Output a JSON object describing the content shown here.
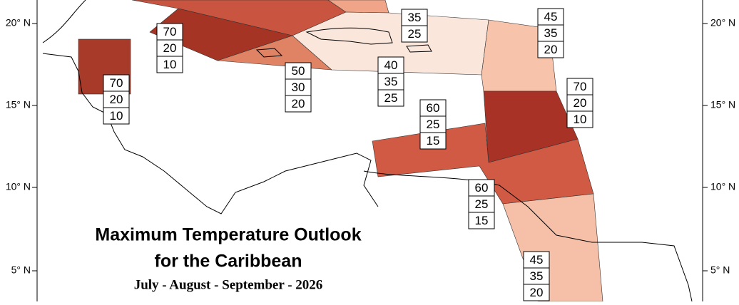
{
  "map": {
    "title": "Maximum Temperature Outlook",
    "subtitle": "for the Caribbean",
    "period": "July - August - September - 2026",
    "lat_labels_left": [
      "20° N",
      "15° N",
      "10° N",
      "5° N"
    ],
    "lat_labels_right": [
      "20° N",
      "15° N",
      "10° N",
      "5° N"
    ],
    "regions": [
      {
        "probabilities": [
          35,
          25
        ]
      },
      {
        "probabilities": [
          70,
          20,
          10
        ]
      },
      {
        "probabilities": [
          70,
          20,
          10
        ]
      },
      {
        "probabilities": [
          50,
          30,
          20
        ]
      },
      {
        "probabilities": [
          40,
          35,
          25
        ]
      },
      {
        "probabilities": [
          45,
          35,
          20
        ]
      },
      {
        "probabilities": [
          70,
          20,
          10
        ]
      },
      {
        "probabilities": [
          60,
          25,
          15
        ]
      },
      {
        "probabilities": [
          60,
          25,
          15
        ]
      },
      {
        "probabilities": [
          45,
          35,
          20
        ]
      }
    ]
  }
}
